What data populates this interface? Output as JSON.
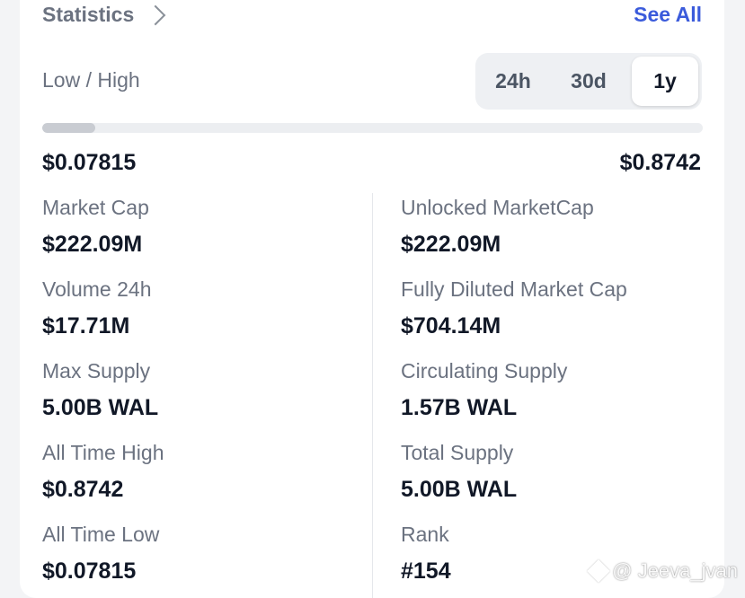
{
  "header": {
    "title": "Statistics",
    "see_all": "See All"
  },
  "range": {
    "label": "Low / High",
    "periods": [
      "24h",
      "30d",
      "1y"
    ],
    "selected": "1y",
    "low": "$0.07815",
    "high": "$0.8742",
    "position_fraction": 0.08
  },
  "stats": {
    "left": [
      {
        "label": "Market Cap",
        "value": "$222.09M"
      },
      {
        "label": "Volume 24h",
        "value": "$17.71M"
      },
      {
        "label": "Max Supply",
        "value": "5.00B WAL"
      },
      {
        "label": "All Time High",
        "value": "$0.8742"
      },
      {
        "label": "All Time Low",
        "value": "$0.07815"
      }
    ],
    "right": [
      {
        "label": "Unlocked MarketCap",
        "value": "$222.09M"
      },
      {
        "label": "Fully Diluted Market Cap",
        "value": "$704.14M"
      },
      {
        "label": "Circulating Supply",
        "value": "1.57B WAL"
      },
      {
        "label": "Total Supply",
        "value": "5.00B WAL"
      },
      {
        "label": "Rank",
        "value": "#154"
      }
    ]
  },
  "watermark": {
    "text": "@ Jeeva_jvan"
  }
}
